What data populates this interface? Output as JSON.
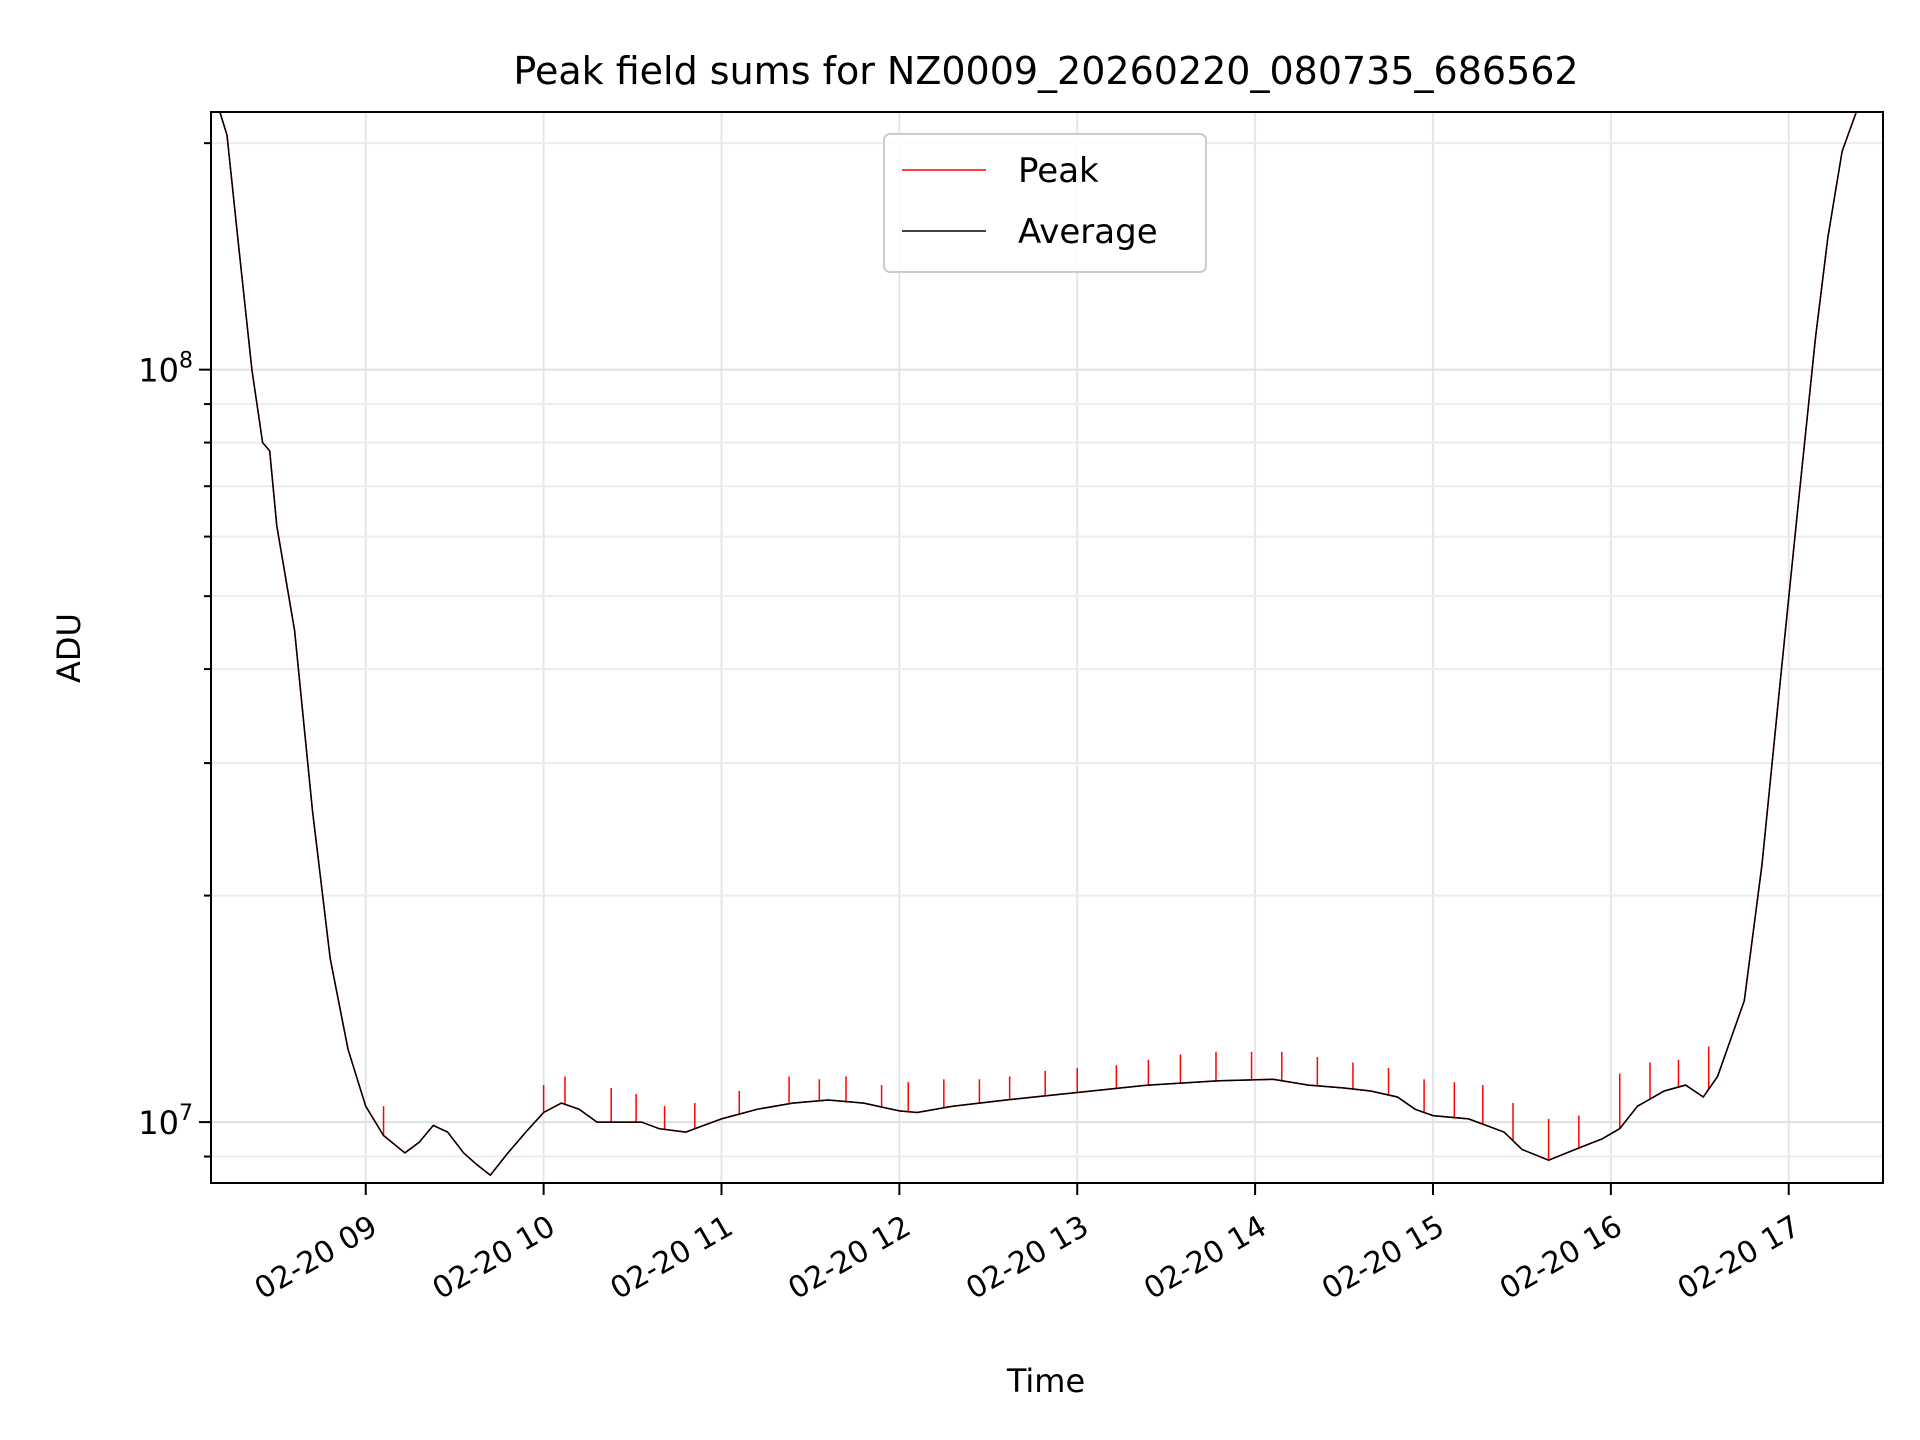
{
  "chart_data": {
    "type": "line",
    "title": "Peak field sums for NZ0009_20260220_080735_686562",
    "xlabel": "Time",
    "ylabel": "ADU",
    "yscale": "log",
    "ylim": [
      8300000,
      220000000
    ],
    "xlim": [
      8.13,
      17.53
    ],
    "grid": true,
    "legend_position": "top-center",
    "x_unit": "hour of 2026-02-20",
    "x_ticks": [
      {
        "value": 9,
        "label": "02-20 09"
      },
      {
        "value": 10,
        "label": "02-20 10"
      },
      {
        "value": 11,
        "label": "02-20 11"
      },
      {
        "value": 12,
        "label": "02-20 12"
      },
      {
        "value": 13,
        "label": "02-20 13"
      },
      {
        "value": 14,
        "label": "02-20 14"
      },
      {
        "value": 15,
        "label": "02-20 15"
      },
      {
        "value": 16,
        "label": "02-20 16"
      },
      {
        "value": 17,
        "label": "02-20 17"
      }
    ],
    "y_ticks": [
      {
        "value": 10000000,
        "mantissa": "10",
        "exponent": "7"
      },
      {
        "value": 100000000,
        "mantissa": "10",
        "exponent": "8"
      }
    ],
    "series": [
      {
        "name": "Peak",
        "color": "#ff0000",
        "spikes": [
          {
            "x": 9.1,
            "y": 10500000
          },
          {
            "x": 10.0,
            "y": 11200000
          },
          {
            "x": 10.12,
            "y": 11500000
          },
          {
            "x": 10.38,
            "y": 11100000
          },
          {
            "x": 10.52,
            "y": 10900000
          },
          {
            "x": 10.68,
            "y": 10500000
          },
          {
            "x": 10.85,
            "y": 10600000
          },
          {
            "x": 11.1,
            "y": 11000000
          },
          {
            "x": 11.38,
            "y": 11500000
          },
          {
            "x": 11.55,
            "y": 11400000
          },
          {
            "x": 11.7,
            "y": 11500000
          },
          {
            "x": 11.9,
            "y": 11200000
          },
          {
            "x": 12.05,
            "y": 11300000
          },
          {
            "x": 12.25,
            "y": 11400000
          },
          {
            "x": 12.45,
            "y": 11400000
          },
          {
            "x": 12.62,
            "y": 11500000
          },
          {
            "x": 12.82,
            "y": 11700000
          },
          {
            "x": 13.0,
            "y": 11800000
          },
          {
            "x": 13.22,
            "y": 11900000
          },
          {
            "x": 13.4,
            "y": 12100000
          },
          {
            "x": 13.58,
            "y": 12300000
          },
          {
            "x": 13.78,
            "y": 12400000
          },
          {
            "x": 13.98,
            "y": 12400000
          },
          {
            "x": 14.15,
            "y": 12400000
          },
          {
            "x": 14.35,
            "y": 12200000
          },
          {
            "x": 14.55,
            "y": 12000000
          },
          {
            "x": 14.75,
            "y": 11800000
          },
          {
            "x": 14.95,
            "y": 11400000
          },
          {
            "x": 15.12,
            "y": 11300000
          },
          {
            "x": 15.28,
            "y": 11200000
          },
          {
            "x": 15.45,
            "y": 10600000
          },
          {
            "x": 15.65,
            "y": 10100000
          },
          {
            "x": 15.82,
            "y": 10200000
          },
          {
            "x": 16.05,
            "y": 11600000
          },
          {
            "x": 16.22,
            "y": 12000000
          },
          {
            "x": 16.38,
            "y": 12100000
          },
          {
            "x": 16.55,
            "y": 12600000
          }
        ]
      },
      {
        "name": "Average",
        "color": "#000000",
        "points": [
          {
            "x": 8.13,
            "y": 220000000
          },
          {
            "x": 8.18,
            "y": 220000000
          },
          {
            "x": 8.22,
            "y": 205000000
          },
          {
            "x": 8.28,
            "y": 150000000
          },
          {
            "x": 8.36,
            "y": 100000000
          },
          {
            "x": 8.42,
            "y": 80000000
          },
          {
            "x": 8.46,
            "y": 78000000
          },
          {
            "x": 8.5,
            "y": 62000000
          },
          {
            "x": 8.6,
            "y": 45000000
          },
          {
            "x": 8.7,
            "y": 26000000
          },
          {
            "x": 8.8,
            "y": 16500000
          },
          {
            "x": 8.9,
            "y": 12500000
          },
          {
            "x": 9.0,
            "y": 10500000
          },
          {
            "x": 9.1,
            "y": 9600000
          },
          {
            "x": 9.22,
            "y": 9100000
          },
          {
            "x": 9.3,
            "y": 9400000
          },
          {
            "x": 9.38,
            "y": 9900000
          },
          {
            "x": 9.46,
            "y": 9700000
          },
          {
            "x": 9.55,
            "y": 9100000
          },
          {
            "x": 9.62,
            "y": 8800000
          },
          {
            "x": 9.7,
            "y": 8500000
          },
          {
            "x": 9.8,
            "y": 9100000
          },
          {
            "x": 9.9,
            "y": 9700000
          },
          {
            "x": 10.0,
            "y": 10300000
          },
          {
            "x": 10.1,
            "y": 10600000
          },
          {
            "x": 10.2,
            "y": 10400000
          },
          {
            "x": 10.3,
            "y": 10000000
          },
          {
            "x": 10.4,
            "y": 10000000
          },
          {
            "x": 10.55,
            "y": 10000000
          },
          {
            "x": 10.65,
            "y": 9800000
          },
          {
            "x": 10.8,
            "y": 9700000
          },
          {
            "x": 10.9,
            "y": 9900000
          },
          {
            "x": 11.0,
            "y": 10100000
          },
          {
            "x": 11.2,
            "y": 10400000
          },
          {
            "x": 11.4,
            "y": 10600000
          },
          {
            "x": 11.6,
            "y": 10700000
          },
          {
            "x": 11.8,
            "y": 10600000
          },
          {
            "x": 12.0,
            "y": 10350000
          },
          {
            "x": 12.1,
            "y": 10300000
          },
          {
            "x": 12.3,
            "y": 10500000
          },
          {
            "x": 12.6,
            "y": 10700000
          },
          {
            "x": 13.0,
            "y": 10950000
          },
          {
            "x": 13.4,
            "y": 11200000
          },
          {
            "x": 13.8,
            "y": 11350000
          },
          {
            "x": 14.1,
            "y": 11400000
          },
          {
            "x": 14.3,
            "y": 11200000
          },
          {
            "x": 14.5,
            "y": 11100000
          },
          {
            "x": 14.65,
            "y": 11000000
          },
          {
            "x": 14.8,
            "y": 10800000
          },
          {
            "x": 14.9,
            "y": 10400000
          },
          {
            "x": 15.0,
            "y": 10200000
          },
          {
            "x": 15.2,
            "y": 10100000
          },
          {
            "x": 15.4,
            "y": 9700000
          },
          {
            "x": 15.5,
            "y": 9200000
          },
          {
            "x": 15.65,
            "y": 8900000
          },
          {
            "x": 15.8,
            "y": 9200000
          },
          {
            "x": 15.95,
            "y": 9500000
          },
          {
            "x": 16.05,
            "y": 9800000
          },
          {
            "x": 16.15,
            "y": 10500000
          },
          {
            "x": 16.3,
            "y": 11000000
          },
          {
            "x": 16.42,
            "y": 11200000
          },
          {
            "x": 16.52,
            "y": 10800000
          },
          {
            "x": 16.6,
            "y": 11500000
          },
          {
            "x": 16.75,
            "y": 14500000
          },
          {
            "x": 16.85,
            "y": 22000000
          },
          {
            "x": 16.95,
            "y": 38000000
          },
          {
            "x": 17.05,
            "y": 65000000
          },
          {
            "x": 17.15,
            "y": 110000000
          },
          {
            "x": 17.22,
            "y": 150000000
          },
          {
            "x": 17.3,
            "y": 195000000
          },
          {
            "x": 17.38,
            "y": 220000000
          },
          {
            "x": 17.53,
            "y": 220000000
          }
        ]
      }
    ]
  }
}
